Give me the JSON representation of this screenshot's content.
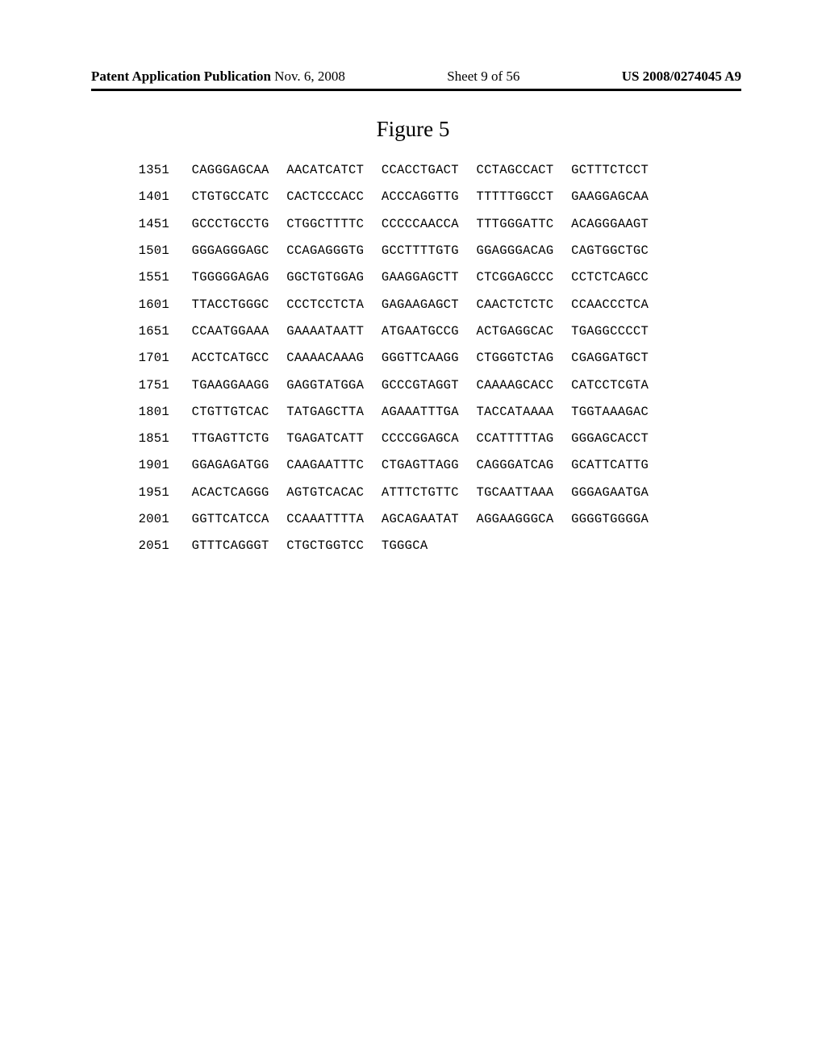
{
  "header": {
    "publication_label": "Patent Application Publication",
    "date": "Nov. 6, 2008",
    "sheet": "Sheet 9 of 56",
    "doc_number": "US 2008/0274045 A9"
  },
  "figure": {
    "title": "Figure 5"
  },
  "sequence": {
    "rows": [
      {
        "pos": "1351",
        "blocks": [
          "CAGGGAGCAA",
          "AACATCATCT",
          "CCACCTGACT",
          "CCTAGCCACT",
          "GCTTTCTCCT"
        ]
      },
      {
        "pos": "1401",
        "blocks": [
          "CTGTGCCATC",
          "CACTCCCACC",
          "ACCCAGGTTG",
          "TTTTTGGCCT",
          "GAAGGAGCAA"
        ]
      },
      {
        "pos": "1451",
        "blocks": [
          "GCCCTGCCTG",
          "CTGGCTTTTC",
          "CCCCCAACCA",
          "TTTGGGATTC",
          "ACAGGGAAGT"
        ]
      },
      {
        "pos": "1501",
        "blocks": [
          "GGGAGGGAGC",
          "CCAGAGGGTG",
          "GCCTTTTGTG",
          "GGAGGGACAG",
          "CAGTGGCTGC"
        ]
      },
      {
        "pos": "1551",
        "blocks": [
          "TGGGGGAGAG",
          "GGCTGTGGAG",
          "GAAGGAGCTT",
          "CTCGGAGCCC",
          "CCTCTCAGCC"
        ]
      },
      {
        "pos": "1601",
        "blocks": [
          "TTACCTGGGC",
          "CCCTCCTCTA",
          "GAGAAGAGCT",
          "CAACTCTCTC",
          "CCAACCCTCA"
        ]
      },
      {
        "pos": "1651",
        "blocks": [
          "CCAATGGAAA",
          "GAAAATAATT",
          "ATGAATGCCG",
          "ACTGAGGCAC",
          "TGAGGCCCCT"
        ]
      },
      {
        "pos": "1701",
        "blocks": [
          "ACCTCATGCC",
          "CAAAACAAAG",
          "GGGTTCAAGG",
          "CTGGGTCTAG",
          "CGAGGATGCT"
        ]
      },
      {
        "pos": "1751",
        "blocks": [
          "TGAAGGAAGG",
          "GAGGTATGGA",
          "GCCCGTAGGT",
          "CAAAAGCACC",
          "CATCCTCGTA"
        ]
      },
      {
        "pos": "1801",
        "blocks": [
          "CTGTTGTCAC",
          "TATGAGCTTA",
          "AGAAATTTGA",
          "TACCATAAAA",
          "TGGTAAAGAC"
        ]
      },
      {
        "pos": "1851",
        "blocks": [
          "TTGAGTTCTG",
          "TGAGATCATT",
          "CCCCGGAGCA",
          "CCATTTTTAG",
          "GGGAGCACCT"
        ]
      },
      {
        "pos": "1901",
        "blocks": [
          "GGAGAGATGG",
          "CAAGAATTTC",
          "CTGAGTTAGG",
          "CAGGGATCAG",
          "GCATTCATTG"
        ]
      },
      {
        "pos": "1951",
        "blocks": [
          "ACACTCAGGG",
          "AGTGTCACAC",
          "ATTTCTGTTC",
          "TGCAATTAAA",
          "GGGAGAATGA"
        ]
      },
      {
        "pos": "2001",
        "blocks": [
          "GGTTCATCCA",
          "CCAAATTTTA",
          "AGCAGAATAT",
          "AGGAAGGGCA",
          "GGGGTGGGGA"
        ]
      },
      {
        "pos": "2051",
        "blocks": [
          "GTTTCAGGGT",
          "CTGCTGGTCC",
          "TGGGCA",
          "",
          ""
        ]
      }
    ]
  }
}
